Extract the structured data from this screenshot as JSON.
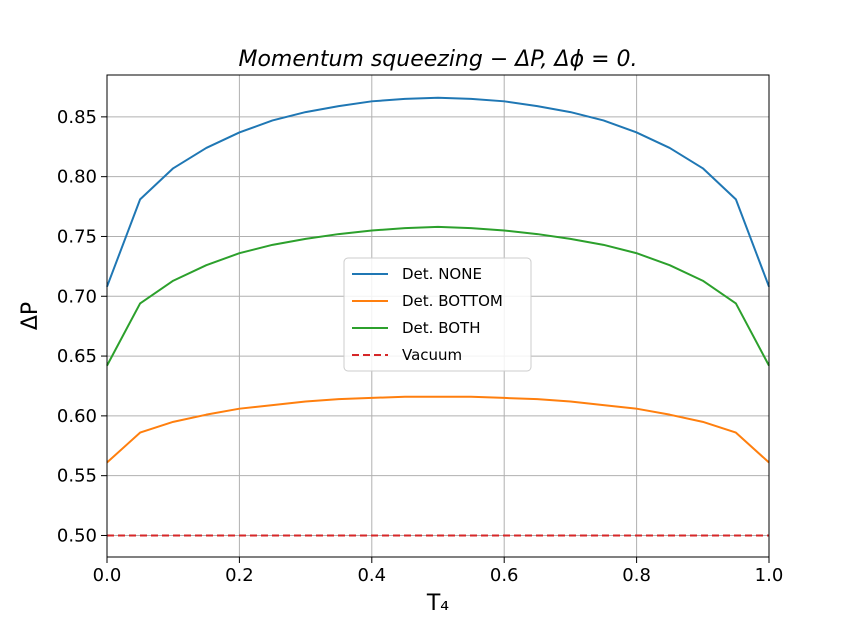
{
  "chart_data": {
    "type": "line",
    "title": "Momentum squeezing − ΔP, Δϕ = 0.",
    "xlabel": "T₄",
    "ylabel": "ΔP",
    "xlim": [
      0.0,
      1.0
    ],
    "ylim": [
      0.482,
      0.885
    ],
    "xticks": [
      0.0,
      0.2,
      0.4,
      0.6,
      0.8,
      1.0
    ],
    "xtick_labels": [
      "0.0",
      "0.2",
      "0.4",
      "0.6",
      "0.8",
      "1.0"
    ],
    "yticks": [
      0.5,
      0.55,
      0.6,
      0.65,
      0.7,
      0.75,
      0.8,
      0.85
    ],
    "ytick_labels": [
      "0.50",
      "0.55",
      "0.60",
      "0.65",
      "0.70",
      "0.75",
      "0.80",
      "0.85"
    ],
    "grid": true,
    "legend_position": "center",
    "x": [
      0.0,
      0.05,
      0.1,
      0.15,
      0.2,
      0.25,
      0.3,
      0.35,
      0.4,
      0.45,
      0.5,
      0.55,
      0.6,
      0.65,
      0.7,
      0.75,
      0.8,
      0.85,
      0.9,
      0.95,
      1.0
    ],
    "series": [
      {
        "name": "Det. NONE",
        "color": "#1f77b4",
        "dash": "solid",
        "values": [
          0.708,
          0.781,
          0.807,
          0.824,
          0.837,
          0.847,
          0.854,
          0.859,
          0.863,
          0.865,
          0.866,
          0.865,
          0.863,
          0.859,
          0.854,
          0.847,
          0.837,
          0.824,
          0.807,
          0.781,
          0.708
        ]
      },
      {
        "name": "Det. BOTTOM",
        "color": "#ff7f0e",
        "dash": "solid",
        "values": [
          0.561,
          0.586,
          0.595,
          0.601,
          0.606,
          0.609,
          0.612,
          0.614,
          0.615,
          0.616,
          0.616,
          0.616,
          0.615,
          0.614,
          0.612,
          0.609,
          0.606,
          0.601,
          0.595,
          0.586,
          0.561
        ]
      },
      {
        "name": "Det. BOTH",
        "color": "#2ca02c",
        "dash": "solid",
        "values": [
          0.642,
          0.694,
          0.713,
          0.726,
          0.736,
          0.743,
          0.748,
          0.752,
          0.755,
          0.757,
          0.758,
          0.757,
          0.755,
          0.752,
          0.748,
          0.743,
          0.736,
          0.726,
          0.713,
          0.694,
          0.642
        ]
      },
      {
        "name": "Vacuum",
        "color": "#d62728",
        "dash": "dashed",
        "values": [
          0.5,
          0.5,
          0.5,
          0.5,
          0.5,
          0.5,
          0.5,
          0.5,
          0.5,
          0.5,
          0.5,
          0.5,
          0.5,
          0.5,
          0.5,
          0.5,
          0.5,
          0.5,
          0.5,
          0.5,
          0.5
        ]
      }
    ]
  }
}
